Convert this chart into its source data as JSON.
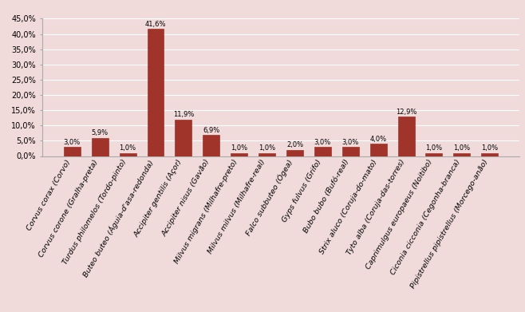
{
  "categories": [
    "Corvus corax (Corvo)",
    "Corvus corone (Gralha-preta)",
    "Turdus philomelos (Tordo-pinto)",
    "Buteo buteo (Águia-d'asa-redonda)",
    "Accipiter gentilis (Açor)",
    "Accipiter nisus (Gavão)",
    "Milvus migrans (Milhafre-preto)",
    "Milvus milvus (Milhafre-real)",
    "Falco subbuteo (Ógea)",
    "Gyps fulvus (Grifo)",
    "Bubo bubo (Bufó-real)",
    "Strix aluco (Coruja-do-mato)",
    "Tyto alba (Coruja-das-torres)",
    "Caprimulgus europaeus (Noitibo)",
    "Ciconia cicconia (Cegonha-branca)",
    "Pipistrellus pipistrellus (Morcego-anão)"
  ],
  "values": [
    3.0,
    5.9,
    1.0,
    41.6,
    11.9,
    6.9,
    1.0,
    1.0,
    2.0,
    3.0,
    3.0,
    4.0,
    12.9,
    1.0,
    1.0,
    1.0
  ],
  "bar_color": "#a0342a",
  "background_color": "#f0dada",
  "plot_area_color": "#f0dada",
  "gridline_color": "#ffffff",
  "ylim": [
    0,
    45
  ],
  "yticks": [
    0.0,
    5.0,
    10.0,
    15.0,
    20.0,
    25.0,
    30.0,
    35.0,
    40.0,
    45.0
  ],
  "ytick_labels": [
    "0,0%",
    "5,0%",
    "10,0%",
    "15,0%",
    "20,0%",
    "25,0%",
    "30,0%",
    "35,0%",
    "40,0%",
    "45,0%"
  ],
  "bar_label_fontsize": 6.0,
  "tick_fontsize": 7.0,
  "xlabel_fontsize": 6.8,
  "figsize": [
    6.58,
    3.91
  ],
  "dpi": 100
}
